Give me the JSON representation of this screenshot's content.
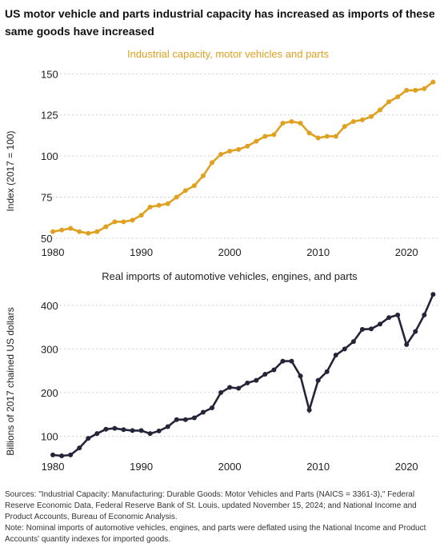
{
  "title": "US motor vehicle and parts industrial capacity has increased as imports of these same goods have increased",
  "chart_data": [
    {
      "type": "line",
      "title": "Industrial capacity, motor vehicles and parts",
      "xlabel": "",
      "ylabel": "Index (2017 = 100)",
      "xlim": [
        1979,
        2023.6
      ],
      "ylim": [
        48,
        156
      ],
      "x_ticks": [
        1980,
        1990,
        2000,
        2010,
        2020
      ],
      "y_ticks": [
        50,
        75,
        100,
        125,
        150
      ],
      "grid": "horizontal dashed",
      "color": "#E0A020",
      "x": [
        1980,
        1981,
        1982,
        1983,
        1984,
        1985,
        1986,
        1987,
        1988,
        1989,
        1990,
        1991,
        1992,
        1993,
        1994,
        1995,
        1996,
        1997,
        1998,
        1999,
        2000,
        2001,
        2002,
        2003,
        2004,
        2005,
        2006,
        2007,
        2008,
        2009,
        2010,
        2011,
        2012,
        2013,
        2014,
        2015,
        2016,
        2017,
        2018,
        2019,
        2020,
        2021,
        2022,
        2023
      ],
      "values": [
        54,
        55,
        56,
        54,
        53,
        54,
        57,
        60,
        60,
        61,
        64,
        69,
        70,
        71,
        75,
        79,
        82,
        88,
        96,
        101,
        103,
        104,
        106,
        109,
        112,
        113,
        120,
        121,
        120,
        114,
        111,
        112,
        112,
        118,
        121,
        122,
        124,
        128,
        133,
        136,
        140,
        140,
        141,
        145
      ]
    },
    {
      "type": "line",
      "title": "Real imports of automotive vehicles, engines, and parts",
      "xlabel": "",
      "ylabel": "Billions of 2017 chained US dollars",
      "xlim": [
        1979,
        2023.6
      ],
      "ylim": [
        55,
        440
      ],
      "x_ticks": [
        1980,
        1990,
        2000,
        2010,
        2020
      ],
      "y_ticks": [
        100,
        200,
        300,
        400
      ],
      "grid": "horizontal dashed",
      "color": "#25253A",
      "x": [
        1980,
        1981,
        1982,
        1983,
        1984,
        1985,
        1986,
        1987,
        1988,
        1989,
        1990,
        1991,
        1992,
        1993,
        1994,
        1995,
        1996,
        1997,
        1998,
        1999,
        2000,
        2001,
        2002,
        2003,
        2004,
        2005,
        2006,
        2007,
        2008,
        2009,
        2010,
        2011,
        2012,
        2013,
        2014,
        2015,
        2016,
        2017,
        2018,
        2019,
        2020,
        2021,
        2022,
        2023
      ],
      "values": [
        57,
        55,
        57,
        73,
        95,
        106,
        116,
        118,
        115,
        113,
        113,
        106,
        112,
        122,
        138,
        138,
        142,
        155,
        165,
        200,
        212,
        210,
        222,
        228,
        242,
        252,
        272,
        272,
        238,
        160,
        228,
        248,
        286,
        300,
        317,
        345,
        346,
        357,
        372,
        378,
        310,
        340,
        378,
        425
      ]
    }
  ],
  "footer": {
    "sources": "Sources: \"Industrial Capacity: Manufacturing: Durable Goods: Motor Vehicles and Parts (NAICS = 3361-3),\" Federal Reserve Economic Data, Federal Reserve Bank of St. Louis, updated November 15, 2024; and National Income and Product Accounts, Bureau of Economic Analysis.",
    "note": "Note: Nominal imports of automotive vehicles, engines, and parts were deflated using the National Income and Product Accounts' quantity indexes for imported goods."
  }
}
